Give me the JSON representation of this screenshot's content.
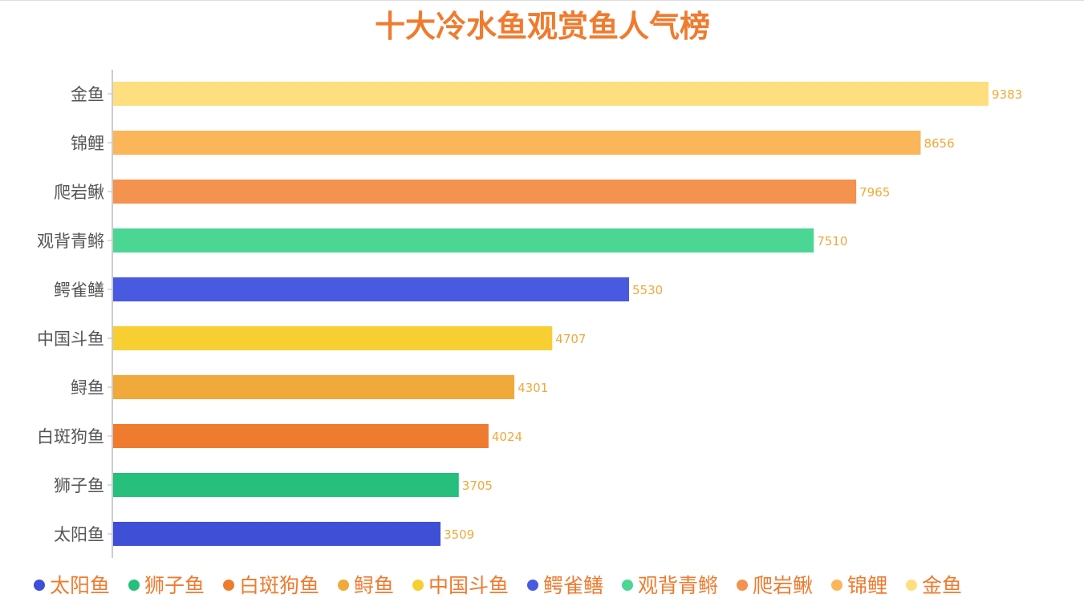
{
  "chart_data": {
    "type": "bar",
    "orientation": "horizontal",
    "title": "十大冷水鱼观赏鱼人气榜",
    "xlabel": "",
    "ylabel": "",
    "xlim": [
      0,
      9383
    ],
    "grid": false,
    "legend_position": "bottom",
    "categories": [
      "太阳鱼",
      "狮子鱼",
      "白斑狗鱼",
      "鲟鱼",
      "中国斗鱼",
      "鳄雀鳝",
      "观背青鳉",
      "爬岩鳅",
      "锦鲤",
      "金鱼"
    ],
    "values": [
      3509,
      3705,
      4024,
      4301,
      4707,
      5530,
      7510,
      7965,
      8656,
      9383
    ],
    "colors": [
      "#3f4fd6",
      "#26bf7c",
      "#ef7b2f",
      "#f0a93a",
      "#f7cf33",
      "#4a5ae0",
      "#4bd694",
      "#f4924f",
      "#fbb65a",
      "#fddf80"
    ],
    "title_color": "#ef7b2f",
    "label_color": "#f0a93a",
    "legend_text_color": "#ef7b2f"
  }
}
